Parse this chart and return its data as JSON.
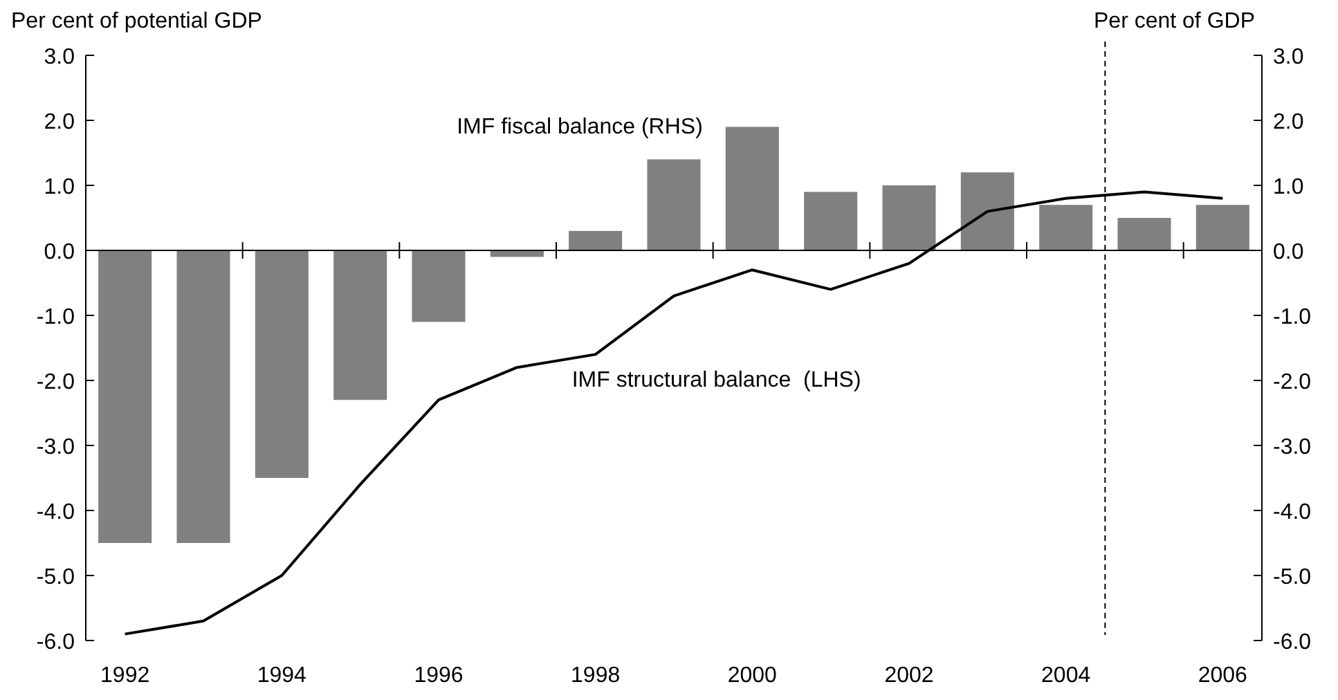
{
  "chart_data": {
    "type": "bar",
    "ylabel": "Per cent of potential GDP",
    "y2label": "Per cent of GDP",
    "x": [
      1992,
      1993,
      1994,
      1995,
      1996,
      1997,
      1998,
      1999,
      2000,
      2001,
      2002,
      2003,
      2004,
      2005,
      2006
    ],
    "xlim": [
      1991.5,
      2006.5
    ],
    "xticks": [
      {
        "value": 1992,
        "label": "1992"
      },
      {
        "value": 1993.5,
        "label": null
      },
      {
        "value": 1994,
        "label": "1994"
      },
      {
        "value": 1995.5,
        "label": null
      },
      {
        "value": 1996,
        "label": "1996"
      },
      {
        "value": 1997.5,
        "label": null
      },
      {
        "value": 1998,
        "label": "1998"
      },
      {
        "value": 1999.5,
        "label": null
      },
      {
        "value": 2000,
        "label": "2000"
      },
      {
        "value": 2001.5,
        "label": null
      },
      {
        "value": 2002,
        "label": "2002"
      },
      {
        "value": 2003.5,
        "label": null
      },
      {
        "value": 2004,
        "label": "2004"
      },
      {
        "value": 2005.5,
        "label": null
      },
      {
        "value": 2006,
        "label": "2006"
      }
    ],
    "ylim": [
      -6,
      3
    ],
    "yticks": [
      {
        "value": 3,
        "label": "3.0"
      },
      {
        "value": 2,
        "label": "2.0"
      },
      {
        "value": 1,
        "label": "1.0"
      },
      {
        "value": 0,
        "label": "0.0"
      },
      {
        "value": -1,
        "label": "-1.0"
      },
      {
        "value": -2,
        "label": "-2.0"
      },
      {
        "value": -3,
        "label": "-3.0"
      },
      {
        "value": -4,
        "label": "-4.0"
      },
      {
        "value": -5,
        "label": "-5.0"
      },
      {
        "value": -6,
        "label": "-6.0"
      }
    ],
    "y2lim": [
      -6,
      3
    ],
    "y2ticks": [
      {
        "value": 3,
        "label": "3.0"
      },
      {
        "value": 2,
        "label": "2.0"
      },
      {
        "value": 1,
        "label": "1.0"
      },
      {
        "value": 0,
        "label": "0.0"
      },
      {
        "value": -1,
        "label": "-1.0"
      },
      {
        "value": -2,
        "label": "-2.0"
      },
      {
        "value": -3,
        "label": "-3.0"
      },
      {
        "value": -4,
        "label": "-4.0"
      },
      {
        "value": -5,
        "label": "-5.0"
      },
      {
        "value": -6,
        "label": "-6.0"
      }
    ],
    "series": [
      {
        "name": "IMF fiscal balance (RHS)",
        "color": "#808080",
        "values": [
          -4.5,
          -4.5,
          -3.5,
          -2.3,
          -1.1,
          -0.1,
          0.3,
          1.4,
          1.9,
          0.9,
          1.0,
          1.2,
          0.7,
          0.5,
          0.7
        ]
      },
      {
        "name": "IMF structural balance  (LHS)",
        "type": "line",
        "color": "#000000",
        "values": [
          -5.9,
          -5.7,
          -5.0,
          -3.6,
          -2.3,
          -1.8,
          -1.6,
          -0.7,
          -0.3,
          -0.6,
          -0.2,
          0.6,
          0.8,
          0.9,
          0.8
        ]
      }
    ],
    "ref_lines": [
      {
        "axis": "x",
        "value": 2004.5,
        "line_style": "dashed",
        "color": "#000000"
      }
    ],
    "tick_labels": true
  }
}
